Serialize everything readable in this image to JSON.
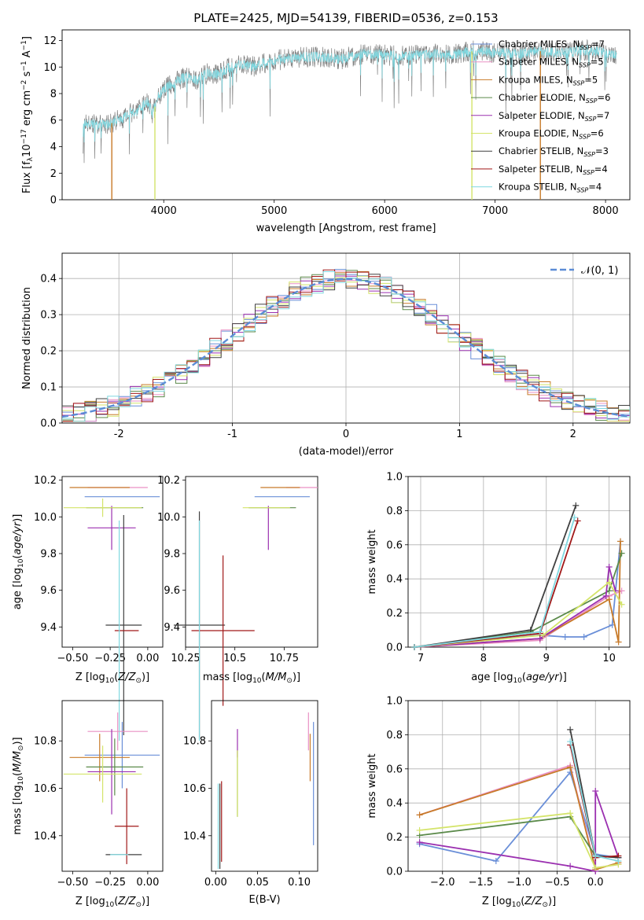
{
  "figure": {
    "title": "PLATE=2425, MJD=54139, FIBERID=0536, z=0.153"
  },
  "chart_data": [
    {
      "panel": "spectrum",
      "type": "line",
      "xlabel": "wavelength [Angstrom, rest frame]",
      "ylabel": "Flux [f_λ10^-17 erg cm^-2 s^-1 A^-1]",
      "xlim": [
        3080,
        8220
      ],
      "ylim": [
        0,
        12.8
      ],
      "xticks": [
        4000,
        5000,
        6000,
        7000,
        8000
      ],
      "yticks": [
        0,
        2,
        4,
        6,
        8,
        10,
        12
      ],
      "grid": false,
      "legend_position": "top-right",
      "legend": [
        {
          "name": "Chabrier MILES, N_SSP=7",
          "color": "#6a8fd8"
        },
        {
          "name": "Salpeter MILES, N_SSP=5",
          "color": "#e991c4"
        },
        {
          "name": "Kroupa MILES, N_SSP=5",
          "color": "#c87b2a"
        },
        {
          "name": "Chabrier ELODIE, N_SSP=6",
          "color": "#5b8a4a"
        },
        {
          "name": "Salpeter ELODIE, N_SSP=7",
          "color": "#9b30b0"
        },
        {
          "name": "Kroupa ELODIE, N_SSP=6",
          "color": "#d4e46a"
        },
        {
          "name": "Chabrier STELIB, N_SSP=3",
          "color": "#404040"
        },
        {
          "name": "Salpeter STELIB, N_SSP=4",
          "color": "#a01818"
        },
        {
          "name": "Kroupa STELIB, N_SSP=4",
          "color": "#80d8e0"
        }
      ],
      "data_envelope": {
        "x": [
          3270,
          3300,
          3350,
          3400,
          3450,
          3500,
          3550,
          3600,
          3650,
          3700,
          3750,
          3800,
          3850,
          3900,
          3950,
          4000,
          4100,
          4200,
          4300,
          4400,
          4500,
          4600,
          4700,
          4800,
          4900,
          5000,
          5200,
          5400,
          5600,
          5800,
          6000,
          6200,
          6400,
          6600,
          6800,
          7000,
          7200,
          7400,
          7600,
          7800,
          8000,
          8100
        ],
        "y": [
          6.0,
          5.6,
          5.8,
          5.5,
          5.9,
          5.6,
          5.9,
          6.0,
          6.3,
          6.6,
          6.4,
          7.0,
          7.4,
          6.5,
          7.8,
          8.3,
          8.8,
          9.3,
          9.0,
          9.6,
          9.4,
          10.0,
          10.2,
          10.0,
          10.3,
          10.5,
          10.7,
          10.8,
          10.6,
          11.0,
          10.9,
          10.8,
          11.0,
          10.9,
          11.2,
          11.1,
          11.0,
          11.2,
          11.0,
          11.3,
          11.1,
          11.0
        ]
      },
      "edge_drops_x": [
        3530,
        3920,
        6790,
        7410
      ]
    },
    {
      "panel": "residuals",
      "type": "line",
      "xlabel": "(data-model)/error",
      "ylabel": "Normed distribution",
      "xlim": [
        -2.5,
        2.5
      ],
      "ylim": [
        0,
        0.47
      ],
      "xticks": [
        -2,
        -1,
        0,
        1,
        2
      ],
      "yticks": [
        0.0,
        0.1,
        0.2,
        0.3,
        0.4
      ],
      "grid": true,
      "legend_position": "top-right",
      "legend": [
        {
          "name": "N(0,1)",
          "color": "#5b8cd6"
        }
      ],
      "bin_width": 0.1
    },
    {
      "panel": "age_vs_Z",
      "type": "scatter",
      "xlabel": "Z [log10(Z/Z⊙)]",
      "ylabel": "age [log10(age/yr)]",
      "xlim": [
        -0.57,
        0.1
      ],
      "ylim": [
        9.29,
        10.22
      ],
      "xticks": [
        -0.5,
        -0.25,
        0.0
      ],
      "xticklabels": [
        "−0.50",
        "−0.25",
        "0.00"
      ],
      "yticks": [
        9.4,
        9.6,
        9.8,
        10.0,
        10.2
      ],
      "points": [
        {
          "color": "#6a8fd8",
          "x": -0.17,
          "xerr": 0.25,
          "y": 10.11,
          "yerr": 0.0
        },
        {
          "color": "#e991c4",
          "x": -0.2,
          "xerr": 0.2,
          "y": 10.16,
          "yerr": 0.0
        },
        {
          "color": "#c87b2a",
          "x": -0.32,
          "xerr": 0.2,
          "y": 10.16,
          "yerr": 0.0
        },
        {
          "color": "#5b8a4a",
          "x": -0.22,
          "xerr": 0.19,
          "y": 10.05,
          "yerr": 0.0
        },
        {
          "color": "#9b30b0",
          "x": -0.24,
          "xerr": 0.16,
          "y": 9.94,
          "yerr": 0.12
        },
        {
          "color": "#d4e46a",
          "x": -0.3,
          "xerr": 0.26,
          "y": 10.05,
          "yerr": 0.05
        },
        {
          "color": "#404040",
          "x": -0.16,
          "xerr": 0.12,
          "y": 9.41,
          "yerr": 0.6
        },
        {
          "color": "#a01818",
          "x": -0.14,
          "xerr": 0.08,
          "y": 9.38,
          "yerr": 0.0
        },
        {
          "color": "#80d8e0",
          "x": -0.19,
          "xerr": 0.0,
          "y": 9.38,
          "yerr": 0.6
        }
      ]
    },
    {
      "panel": "age_vs_mass",
      "type": "scatter",
      "xlabel": "mass [log10(M/M⊙)]",
      "xlim": [
        10.25,
        10.92
      ],
      "ylim": [
        9.29,
        10.22
      ],
      "xticks": [
        10.25,
        10.5,
        10.75
      ],
      "yticks": [
        9.4,
        9.6,
        9.8,
        10.0,
        10.2
      ],
      "points": [
        {
          "color": "#6a8fd8",
          "x": 10.74,
          "xerr": 0.14,
          "y": 10.11,
          "yerr": 0.0
        },
        {
          "color": "#e991c4",
          "x": 10.84,
          "xerr": 0.08,
          "y": 10.16,
          "yerr": 0.0
        },
        {
          "color": "#c87b2a",
          "x": 10.73,
          "xerr": 0.1,
          "y": 10.16,
          "yerr": 0.0
        },
        {
          "color": "#5b8a4a",
          "x": 10.69,
          "xerr": 0.12,
          "y": 10.05,
          "yerr": 0.0
        },
        {
          "color": "#9b30b0",
          "x": 10.67,
          "xerr": 0.0,
          "y": 9.94,
          "yerr": 0.12
        },
        {
          "color": "#d4e46a",
          "x": 10.66,
          "xerr": 0.12,
          "y": 10.05,
          "yerr": 0.0
        },
        {
          "color": "#404040",
          "x": 10.32,
          "xerr": 0.13,
          "y": 9.41,
          "yerr": 0.62
        },
        {
          "color": "#a01818",
          "x": 10.44,
          "xerr": 0.16,
          "y": 9.38,
          "yerr": 0.41
        },
        {
          "color": "#80d8e0",
          "x": 10.32,
          "xerr": 0.0,
          "y": 9.38,
          "yerr": 0.6
        }
      ]
    },
    {
      "panel": "mass_weight_vs_age",
      "type": "line",
      "xlabel": "age [log10(age/yr)]",
      "ylabel": "mass weight",
      "xlim": [
        6.8,
        10.33
      ],
      "ylim": [
        0,
        1.0
      ],
      "xticks": [
        7,
        8,
        9,
        10
      ],
      "yticks": [
        0.0,
        0.2,
        0.4,
        0.6,
        0.8,
        1.0
      ],
      "grid": true,
      "series": [
        {
          "color": "#6a8fd8",
          "x": [
            6.9,
            8.9,
            9.3,
            9.6,
            10.05,
            10.18
          ],
          "y": [
            0.0,
            0.07,
            0.06,
            0.06,
            0.13,
            0.62
          ]
        },
        {
          "color": "#e991c4",
          "x": [
            6.9,
            8.9,
            10.0,
            10.2
          ],
          "y": [
            0.0,
            0.04,
            0.3,
            0.33
          ]
        },
        {
          "color": "#c87b2a",
          "x": [
            6.9,
            8.9,
            10.0,
            10.15,
            10.18
          ],
          "y": [
            0.0,
            0.05,
            0.28,
            0.03,
            0.62
          ]
        },
        {
          "color": "#5b8a4a",
          "x": [
            6.9,
            8.75,
            10.0,
            10.2
          ],
          "y": [
            0.0,
            0.09,
            0.33,
            0.55
          ]
        },
        {
          "color": "#9b30b0",
          "x": [
            6.9,
            8.9,
            9.95,
            10.0,
            10.1
          ],
          "y": [
            0.0,
            0.05,
            0.3,
            0.47,
            0.33
          ]
        },
        {
          "color": "#d4e46a",
          "x": [
            6.9,
            8.95,
            10.0,
            10.2
          ],
          "y": [
            0.0,
            0.07,
            0.38,
            0.25
          ]
        },
        {
          "color": "#404040",
          "x": [
            6.9,
            8.75,
            9.47
          ],
          "y": [
            0.0,
            0.1,
            0.83
          ]
        },
        {
          "color": "#a01818",
          "x": [
            6.9,
            8.9,
            9.5
          ],
          "y": [
            0.0,
            0.08,
            0.74
          ]
        },
        {
          "color": "#80d8e0",
          "x": [
            6.9,
            8.9,
            9.45
          ],
          "y": [
            0.0,
            0.09,
            0.76
          ]
        }
      ]
    },
    {
      "panel": "mass_vs_Z",
      "type": "scatter",
      "xlabel": "Z [log10(Z/Z⊙)]",
      "ylabel": "mass [log10(M/M⊙)]",
      "xlim": [
        -0.57,
        0.1
      ],
      "ylim": [
        10.25,
        10.97
      ],
      "xticks": [
        -0.5,
        -0.25,
        0.0
      ],
      "xticklabels": [
        "−0.50",
        "−0.25",
        "0.00"
      ],
      "yticks": [
        10.4,
        10.6,
        10.8
      ],
      "points": [
        {
          "color": "#6a8fd8",
          "x": -0.17,
          "xerr": 0.25,
          "y": 10.74,
          "yerr": 0.14
        },
        {
          "color": "#e991c4",
          "x": -0.2,
          "xerr": 0.2,
          "y": 10.84,
          "yerr": 0.08
        },
        {
          "color": "#c87b2a",
          "x": -0.32,
          "xerr": 0.2,
          "y": 10.73,
          "yerr": 0.1
        },
        {
          "color": "#5b8a4a",
          "x": -0.22,
          "xerr": 0.19,
          "y": 10.69,
          "yerr": 0.12
        },
        {
          "color": "#9b30b0",
          "x": -0.24,
          "xerr": 0.16,
          "y": 10.67,
          "yerr": 0.18
        },
        {
          "color": "#d4e46a",
          "x": -0.3,
          "xerr": 0.26,
          "y": 10.66,
          "yerr": 0.12
        },
        {
          "color": "#404040",
          "x": -0.16,
          "xerr": 0.12,
          "y": 10.32,
          "yerr": 0.0
        },
        {
          "color": "#a01818",
          "x": -0.14,
          "xerr": 0.08,
          "y": 10.44,
          "yerr": 0.16
        },
        {
          "color": "#80d8e0",
          "x": -0.19,
          "xerr": 0.06,
          "y": 10.32,
          "yerr": 0.0
        }
      ]
    },
    {
      "panel": "mass_vs_EBV",
      "type": "scatter",
      "xlabel": "E(B-V)",
      "xlim": [
        -0.005,
        0.122
      ],
      "ylim": [
        10.25,
        10.97
      ],
      "xticks": [
        0.0,
        0.05,
        0.1
      ],
      "xticklabels": [
        "0.00",
        "0.05",
        "0.10"
      ],
      "yticks": [
        10.4,
        10.6,
        10.8
      ],
      "points": [
        {
          "color": "#6a8fd8",
          "x": 0.117,
          "y": 10.62,
          "yerr": 0.26
        },
        {
          "color": "#e991c4",
          "x": 0.111,
          "y": 10.84,
          "yerr": 0.08
        },
        {
          "color": "#c87b2a",
          "x": 0.113,
          "y": 10.73,
          "yerr": 0.1
        },
        {
          "color": "#5b8a4a",
          "x": 0.026,
          "y": 10.62,
          "yerr": 0.14
        },
        {
          "color": "#9b30b0",
          "x": 0.026,
          "y": 10.79,
          "yerr": 0.06
        },
        {
          "color": "#d4e46a",
          "x": 0.026,
          "y": 10.62,
          "yerr": 0.14
        },
        {
          "color": "#404040",
          "x": 0.005,
          "y": 10.44,
          "yerr": 0.18
        },
        {
          "color": "#a01818",
          "x": 0.007,
          "y": 10.46,
          "yerr": 0.17
        },
        {
          "color": "#80d8e0",
          "x": 0.003,
          "y": 10.44,
          "yerr": 0.18
        }
      ]
    },
    {
      "panel": "mass_weight_vs_Z",
      "type": "line",
      "xlabel": "Z [log10(Z/Z⊙)]",
      "ylabel": "mass weight",
      "xlim": [
        -2.45,
        0.45
      ],
      "ylim": [
        0,
        1.0
      ],
      "xticks": [
        -2.0,
        -1.5,
        -1.0,
        -0.5,
        0.0
      ],
      "xticklabels": [
        "−2.0",
        "−1.5",
        "−1.0",
        "−0.5",
        "0.0"
      ],
      "yticks": [
        0.0,
        0.2,
        0.4,
        0.6,
        0.8,
        1.0
      ],
      "grid": true,
      "series": [
        {
          "color": "#6a8fd8",
          "x": [
            -2.3,
            -1.3,
            -0.33,
            0.0,
            0.3
          ],
          "y": [
            0.16,
            0.06,
            0.58,
            0.1,
            0.08
          ]
        },
        {
          "color": "#e991c4",
          "x": [
            -2.3,
            -0.33,
            0.0,
            0.3
          ],
          "y": [
            0.33,
            0.62,
            0.02,
            0.04
          ]
        },
        {
          "color": "#c87b2a",
          "x": [
            -2.3,
            -0.33,
            0.0,
            0.3
          ],
          "y": [
            0.33,
            0.61,
            0.01,
            0.05
          ]
        },
        {
          "color": "#5b8a4a",
          "x": [
            -2.3,
            -0.33,
            0.0,
            0.3
          ],
          "y": [
            0.21,
            0.32,
            0.09,
            0.08
          ]
        },
        {
          "color": "#9b30b0",
          "x": [
            -2.3,
            -0.33,
            0.0,
            0.0,
            0.3
          ],
          "y": [
            0.17,
            0.03,
            0.0,
            0.47,
            0.08
          ]
        },
        {
          "color": "#d4e46a",
          "x": [
            -2.3,
            -0.33,
            0.0,
            0.3
          ],
          "y": [
            0.24,
            0.34,
            0.02,
            0.04
          ]
        },
        {
          "color": "#404040",
          "x": [
            -0.33,
            0.0,
            0.3
          ],
          "y": [
            0.83,
            0.09,
            0.08
          ]
        },
        {
          "color": "#a01818",
          "x": [
            -0.33,
            0.0,
            0.3
          ],
          "y": [
            0.74,
            0.08,
            0.09
          ]
        },
        {
          "color": "#80d8e0",
          "x": [
            -0.33,
            0.0,
            0.3
          ],
          "y": [
            0.76,
            0.09,
            0.06
          ]
        }
      ]
    }
  ]
}
